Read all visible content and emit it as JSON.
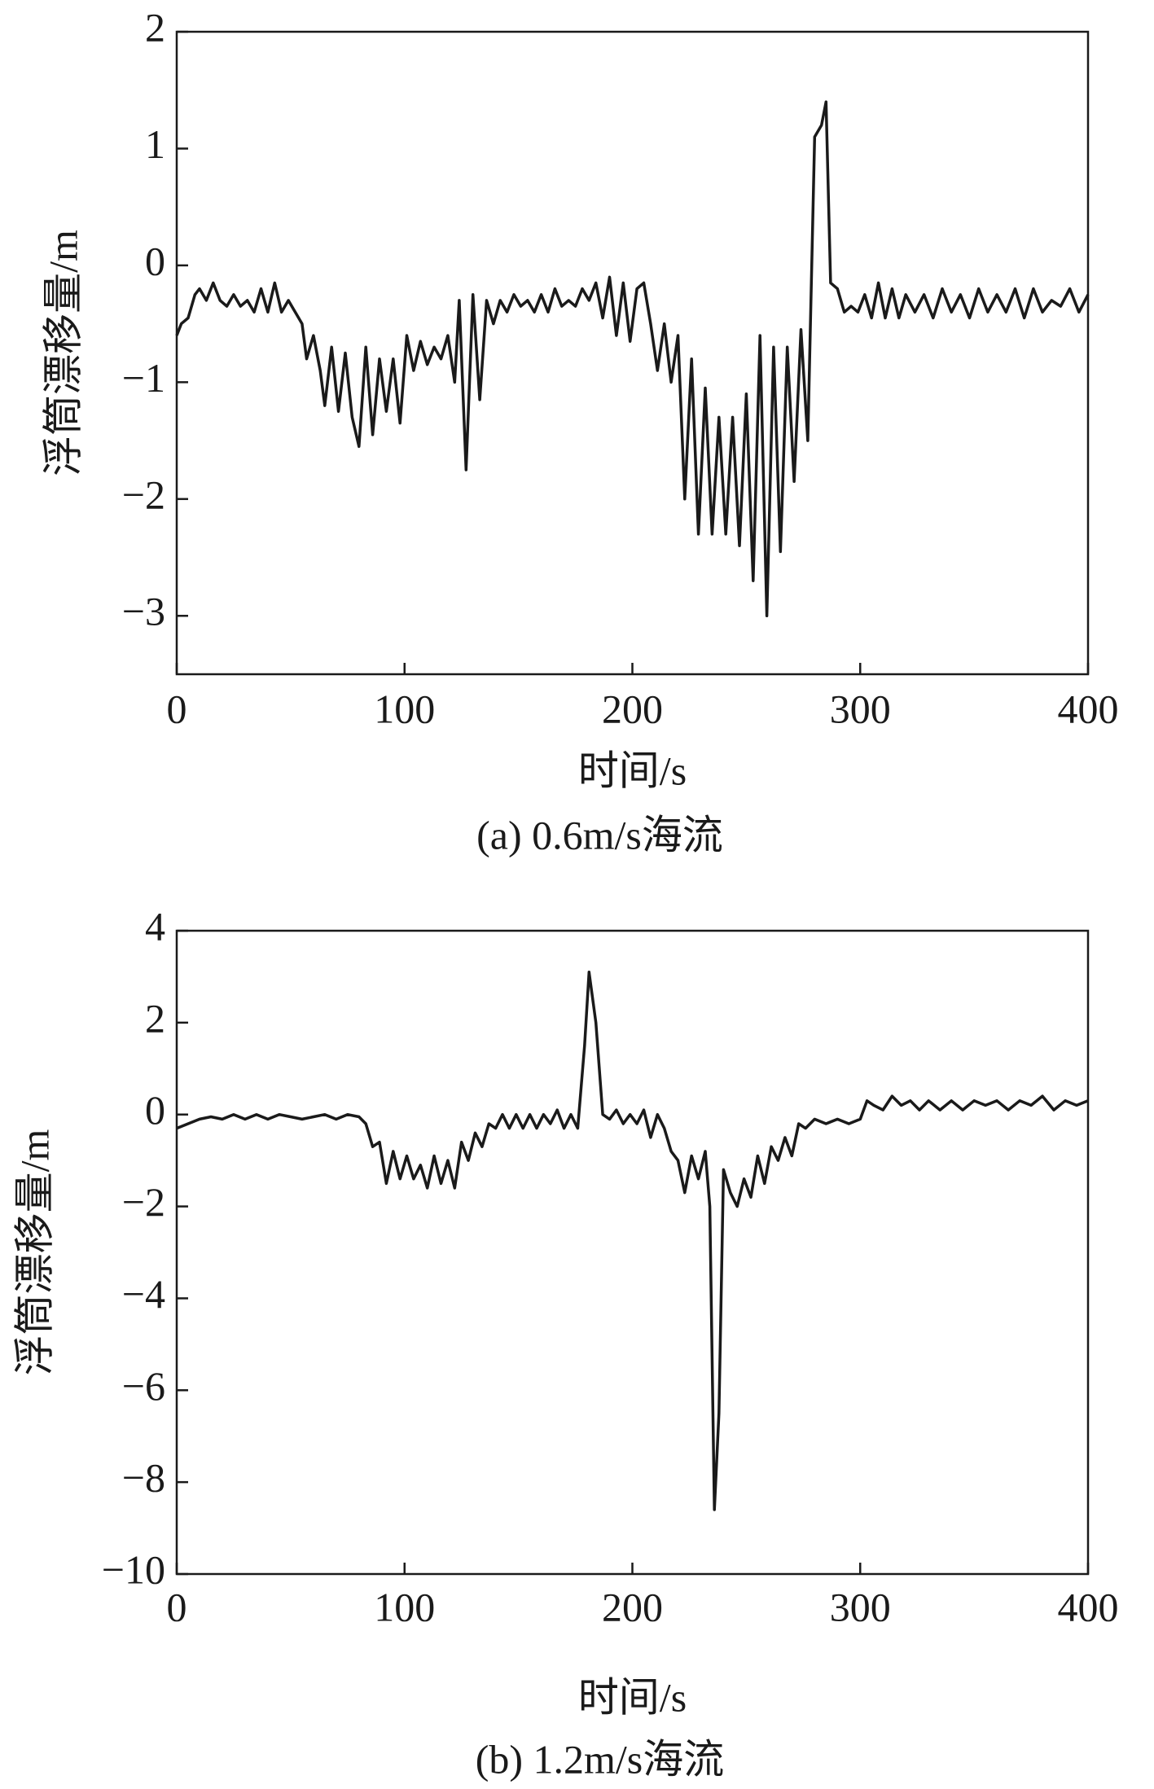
{
  "chart_data": [
    {
      "type": "line",
      "caption": "(a) 0.6m/s海流",
      "xlabel": "时间/s",
      "ylabel": "浮筒漂移量/m",
      "xlim": [
        0,
        400
      ],
      "xticks": [
        0,
        100,
        200,
        300,
        400
      ],
      "ylim": [
        -3.5,
        2
      ],
      "yticks": [
        {
          "value": -3,
          "label": "−3"
        },
        {
          "value": -2,
          "label": "−2"
        },
        {
          "value": -1,
          "label": "−1"
        },
        0,
        1,
        2
      ],
      "x": [
        0,
        2,
        5,
        8,
        10,
        13,
        16,
        19,
        22,
        25,
        28,
        31,
        34,
        37,
        40,
        43,
        46,
        49,
        52,
        55,
        57,
        60,
        63,
        65,
        68,
        71,
        74,
        77,
        80,
        83,
        86,
        89,
        92,
        95,
        98,
        101,
        104,
        107,
        110,
        113,
        116,
        119,
        122,
        124,
        127,
        130,
        133,
        136,
        139,
        142,
        145,
        148,
        151,
        154,
        157,
        160,
        163,
        166,
        169,
        172,
        175,
        178,
        181,
        184,
        187,
        190,
        193,
        196,
        199,
        202,
        205,
        208,
        211,
        214,
        217,
        220,
        223,
        226,
        229,
        232,
        235,
        238,
        241,
        244,
        247,
        250,
        253,
        256,
        259,
        262,
        265,
        268,
        271,
        274,
        277,
        280,
        283,
        285,
        287,
        290,
        293,
        296,
        299,
        302,
        305,
        308,
        311,
        314,
        317,
        320,
        324,
        328,
        332,
        336,
        340,
        344,
        348,
        352,
        356,
        360,
        364,
        368,
        372,
        376,
        380,
        384,
        388,
        392,
        396,
        400
      ],
      "series": [
        {
          "name": "0.6m/s",
          "color": "#1a1a1a",
          "values": [
            -0.6,
            -0.5,
            -0.45,
            -0.25,
            -0.2,
            -0.3,
            -0.15,
            -0.3,
            -0.35,
            -0.25,
            -0.35,
            -0.3,
            -0.4,
            -0.2,
            -0.4,
            -0.15,
            -0.4,
            -0.3,
            -0.4,
            -0.5,
            -0.8,
            -0.6,
            -0.9,
            -1.2,
            -0.7,
            -1.25,
            -0.75,
            -1.3,
            -1.55,
            -0.7,
            -1.45,
            -0.8,
            -1.25,
            -0.8,
            -1.35,
            -0.6,
            -0.9,
            -0.65,
            -0.85,
            -0.7,
            -0.8,
            -0.6,
            -1.0,
            -0.3,
            -1.75,
            -0.25,
            -1.15,
            -0.3,
            -0.5,
            -0.3,
            -0.4,
            -0.25,
            -0.35,
            -0.3,
            -0.4,
            -0.25,
            -0.4,
            -0.2,
            -0.35,
            -0.3,
            -0.35,
            -0.2,
            -0.3,
            -0.15,
            -0.45,
            -0.1,
            -0.6,
            -0.15,
            -0.65,
            -0.2,
            -0.15,
            -0.5,
            -0.9,
            -0.5,
            -1.0,
            -0.6,
            -2.0,
            -0.8,
            -2.3,
            -1.05,
            -2.3,
            -1.3,
            -2.3,
            -1.3,
            -2.4,
            -1.1,
            -2.7,
            -0.6,
            -3.0,
            -0.7,
            -2.45,
            -0.7,
            -1.85,
            -0.55,
            -1.5,
            1.1,
            1.2,
            1.4,
            -0.15,
            -0.2,
            -0.4,
            -0.35,
            -0.4,
            -0.25,
            -0.45,
            -0.15,
            -0.45,
            -0.2,
            -0.45,
            -0.25,
            -0.4,
            -0.25,
            -0.45,
            -0.2,
            -0.4,
            -0.25,
            -0.45,
            -0.2,
            -0.4,
            -0.25,
            -0.4,
            -0.2,
            -0.45,
            -0.2,
            -0.4,
            -0.3,
            -0.35,
            -0.2,
            -0.4,
            -0.25
          ]
        }
      ]
    },
    {
      "type": "line",
      "caption": "(b) 1.2m/s海流",
      "xlabel": "时间/s",
      "ylabel": "浮筒漂移量/m",
      "xlim": [
        0,
        400
      ],
      "xticks": [
        0,
        100,
        200,
        300,
        400
      ],
      "ylim": [
        -10,
        4
      ],
      "yticks": [
        {
          "value": -10,
          "label": "−10"
        },
        {
          "value": -8,
          "label": "−8"
        },
        {
          "value": -6,
          "label": "−6"
        },
        {
          "value": -4,
          "label": "−4"
        },
        {
          "value": -2,
          "label": "−2"
        },
        0,
        2,
        4
      ],
      "x": [
        0,
        5,
        10,
        15,
        20,
        25,
        30,
        35,
        40,
        45,
        50,
        55,
        60,
        65,
        70,
        75,
        80,
        83,
        86,
        89,
        92,
        95,
        98,
        101,
        104,
        107,
        110,
        113,
        116,
        119,
        122,
        125,
        128,
        131,
        134,
        137,
        140,
        143,
        146,
        149,
        152,
        155,
        158,
        161,
        164,
        167,
        170,
        173,
        176,
        179,
        181,
        184,
        187,
        190,
        193,
        196,
        199,
        202,
        205,
        208,
        211,
        214,
        217,
        220,
        223,
        226,
        229,
        232,
        234,
        236,
        238,
        240,
        243,
        246,
        249,
        252,
        255,
        258,
        261,
        264,
        267,
        270,
        273,
        276,
        280,
        285,
        290,
        295,
        300,
        303,
        306,
        310,
        314,
        318,
        322,
        326,
        330,
        335,
        340,
        345,
        350,
        355,
        360,
        365,
        370,
        375,
        380,
        385,
        390,
        395,
        400
      ],
      "series": [
        {
          "name": "1.2m/s",
          "color": "#1a1a1a",
          "values": [
            -0.3,
            -0.2,
            -0.1,
            -0.05,
            -0.1,
            0,
            -0.1,
            0,
            -0.1,
            0,
            -0.05,
            -0.1,
            -0.05,
            0,
            -0.1,
            0,
            -0.05,
            -0.2,
            -0.7,
            -0.6,
            -1.5,
            -0.8,
            -1.4,
            -0.9,
            -1.4,
            -1.1,
            -1.6,
            -0.9,
            -1.5,
            -1.0,
            -1.6,
            -0.6,
            -1.0,
            -0.4,
            -0.7,
            -0.2,
            -0.3,
            0,
            -0.3,
            0,
            -0.3,
            0,
            -0.3,
            0,
            -0.2,
            0.1,
            -0.3,
            0,
            -0.3,
            1.5,
            3.1,
            2.0,
            0,
            -0.1,
            0.1,
            -0.2,
            0,
            -0.2,
            0.1,
            -0.5,
            0,
            -0.3,
            -0.8,
            -1.0,
            -1.7,
            -0.9,
            -1.4,
            -0.8,
            -2.0,
            -8.6,
            -6.5,
            -1.2,
            -1.7,
            -2.0,
            -1.4,
            -1.8,
            -0.9,
            -1.5,
            -0.7,
            -1.0,
            -0.5,
            -0.9,
            -0.2,
            -0.3,
            -0.1,
            -0.2,
            -0.1,
            -0.2,
            -0.1,
            0.3,
            0.2,
            0.1,
            0.4,
            0.2,
            0.3,
            0.1,
            0.3,
            0.1,
            0.3,
            0.1,
            0.3,
            0.2,
            0.3,
            0.1,
            0.3,
            0.2,
            0.4,
            0.1,
            0.3,
            0.2,
            0.3
          ]
        }
      ]
    }
  ]
}
